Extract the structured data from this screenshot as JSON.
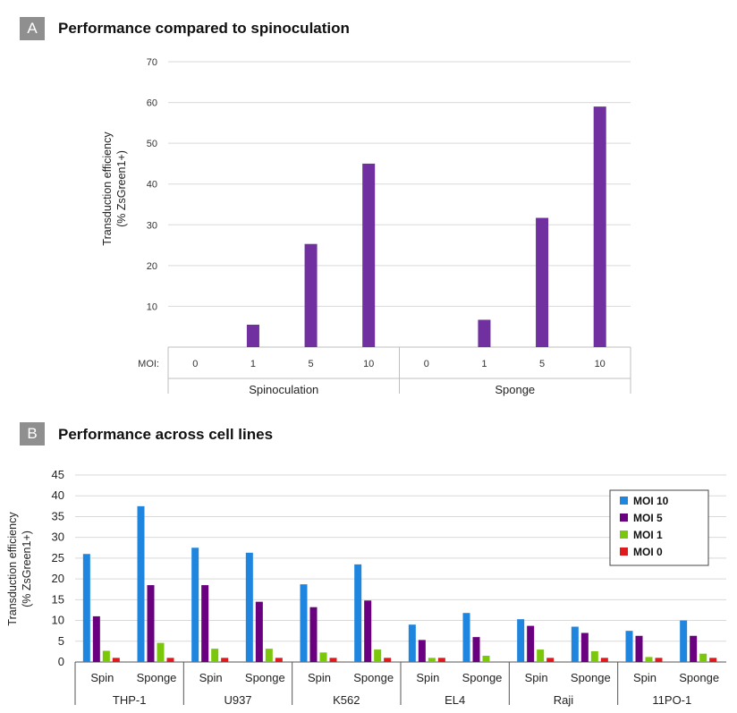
{
  "panels": [
    {
      "label": "A",
      "title": "Performance compared to spinoculation"
    },
    {
      "label": "B",
      "title": "Performance across cell lines"
    }
  ],
  "colors": {
    "purple": "#7030a0",
    "moi10": "#1f86e0",
    "moi5": "#6a007f",
    "moi1": "#7ac70c",
    "moi0": "#e0191d",
    "grid": "#d9d9d9",
    "axis": "#bfbfbf"
  },
  "chart_data": [
    {
      "type": "bar",
      "title": "Performance compared to spinoculation",
      "ylabel_lines": [
        "Transduction efficiency",
        "(% ZsGreen1+)"
      ],
      "ylim": [
        0,
        70
      ],
      "yticks": [
        10,
        20,
        30,
        40,
        50,
        60,
        70
      ],
      "grid": true,
      "moi_label": "MOI:",
      "groups": [
        {
          "name": "Spinoculation",
          "categories": [
            "0",
            "1",
            "5",
            "10"
          ],
          "values": [
            0,
            5.5,
            25.3,
            45
          ]
        },
        {
          "name": "Sponge",
          "categories": [
            "0",
            "1",
            "5",
            "10"
          ],
          "values": [
            0,
            6.7,
            31.7,
            59
          ]
        }
      ]
    },
    {
      "type": "bar",
      "title": "Performance across cell lines",
      "ylabel_lines": [
        "Transduction efficiency",
        "(% ZsGreen1+)"
      ],
      "ylim": [
        0,
        45
      ],
      "yticks": [
        0,
        5,
        10,
        15,
        20,
        25,
        30,
        35,
        40,
        45
      ],
      "grid": true,
      "legend_position": "top-right",
      "groups": [
        "THP-1",
        "U937",
        "K562",
        "EL4",
        "Raji",
        "11PO-1"
      ],
      "subcategories": [
        "Spin",
        "Sponge"
      ],
      "series": [
        {
          "name": "MOI 10",
          "values": [
            26,
            37.5,
            27.5,
            26.3,
            18.7,
            23.5,
            9,
            11.8,
            10.3,
            8.5,
            7.5,
            10
          ]
        },
        {
          "name": "MOI 5",
          "values": [
            11,
            18.5,
            18.5,
            14.5,
            13.2,
            14.8,
            5.3,
            6,
            8.7,
            7,
            6.3,
            6.3
          ]
        },
        {
          "name": "MOI 1",
          "values": [
            2.7,
            4.6,
            3.2,
            3.2,
            2.3,
            3,
            1,
            1.5,
            3,
            2.6,
            1.2,
            2
          ]
        },
        {
          "name": "MOI 0",
          "values": [
            1,
            1,
            1,
            1,
            1,
            1,
            1,
            0,
            1,
            1,
            1,
            1
          ]
        }
      ]
    }
  ]
}
